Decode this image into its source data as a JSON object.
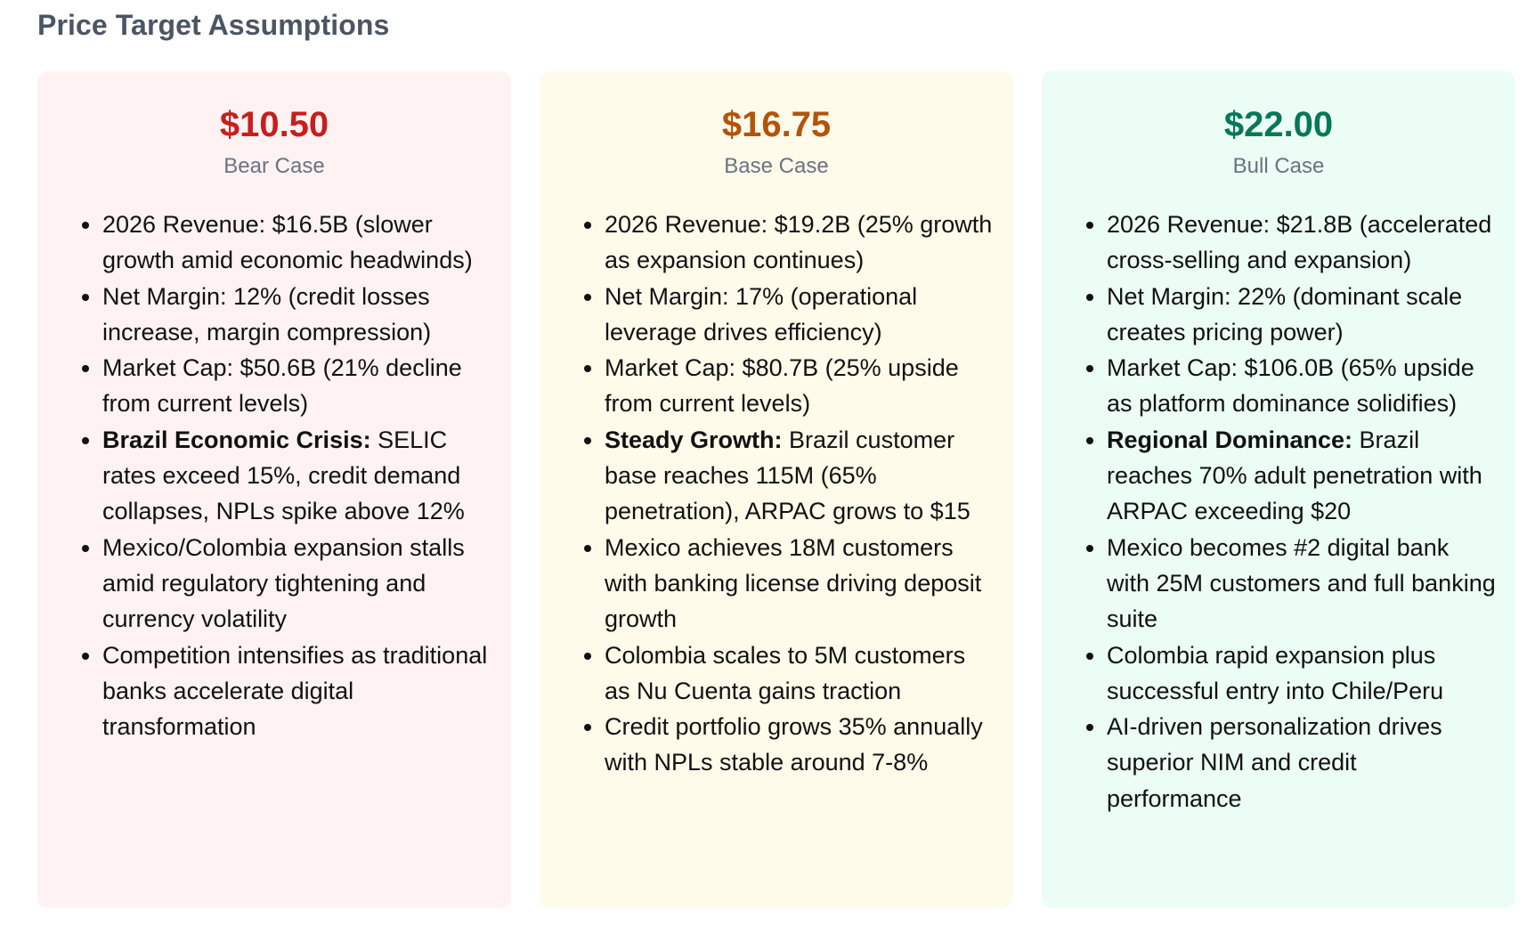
{
  "page_title": "Price Target Assumptions",
  "colors": {
    "bear_price": "#c81e1e",
    "base_price": "#b45309",
    "bull_price": "#047857",
    "bear_bg": "#fef2f2",
    "base_bg": "#fffbeb",
    "bull_bg": "#ecfdf5"
  },
  "cards": [
    {
      "price": "$10.50",
      "label": "Bear Case",
      "bullets": [
        {
          "bold": "",
          "text": "2026 Revenue: $16.5B (slower growth amid economic headwinds)"
        },
        {
          "bold": "",
          "text": "Net Margin: 12% (credit losses increase, margin compression)"
        },
        {
          "bold": "",
          "text": "Market Cap: $50.6B (21% decline from current levels)"
        },
        {
          "bold": "Brazil Economic Crisis:",
          "text": " SELIC rates exceed 15%, credit demand collapses, NPLs spike above 12%"
        },
        {
          "bold": "",
          "text": "Mexico/Colombia expansion stalls amid regulatory tightening and currency volatility"
        },
        {
          "bold": "",
          "text": "Competition intensifies as traditional banks accelerate digital transformation"
        }
      ]
    },
    {
      "price": "$16.75",
      "label": "Base Case",
      "bullets": [
        {
          "bold": "",
          "text": "2026 Revenue: $19.2B (25% growth as expansion continues)"
        },
        {
          "bold": "",
          "text": "Net Margin: 17% (operational leverage drives efficiency)"
        },
        {
          "bold": "",
          "text": "Market Cap: $80.7B (25% upside from current levels)"
        },
        {
          "bold": "Steady Growth:",
          "text": " Brazil customer base reaches 115M (65% penetration), ARPAC grows to $15"
        },
        {
          "bold": "",
          "text": "Mexico achieves 18M customers with banking license driving deposit growth"
        },
        {
          "bold": "",
          "text": "Colombia scales to 5M customers as Nu Cuenta gains traction"
        },
        {
          "bold": "",
          "text": "Credit portfolio grows 35% annually with NPLs stable around 7-8%"
        }
      ]
    },
    {
      "price": "$22.00",
      "label": "Bull Case",
      "bullets": [
        {
          "bold": "",
          "text": "2026 Revenue: $21.8B (accelerated cross-selling and expansion)"
        },
        {
          "bold": "",
          "text": "Net Margin: 22% (dominant scale creates pricing power)"
        },
        {
          "bold": "",
          "text": "Market Cap: $106.0B (65% upside as platform dominance solidifies)"
        },
        {
          "bold": "Regional Dominance:",
          "text": " Brazil reaches 70% adult penetration with ARPAC exceeding $20"
        },
        {
          "bold": "",
          "text": "Mexico becomes #2 digital bank with 25M customers and full banking suite"
        },
        {
          "bold": "",
          "text": "Colombia rapid expansion plus successful entry into Chile/Peru"
        },
        {
          "bold": "",
          "text": "AI-driven personalization drives superior NIM and credit performance"
        }
      ]
    }
  ]
}
